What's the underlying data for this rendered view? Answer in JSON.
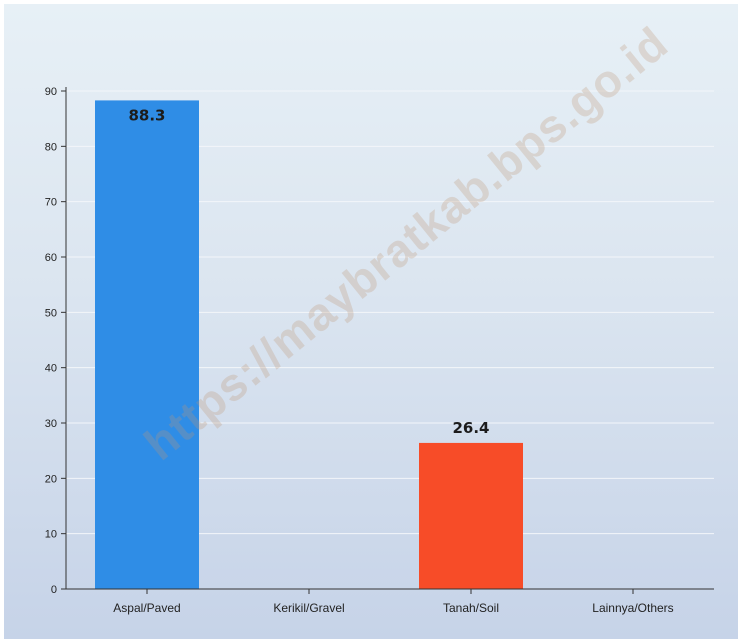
{
  "chart_data": {
    "type": "bar",
    "categories": [
      "Aspal/Paved",
      "Kerikil/Gravel",
      "Tanah/Soil",
      "Lainnya/Others"
    ],
    "values": [
      88.3,
      null,
      26.4,
      null
    ],
    "data_labels": [
      "88.3",
      "",
      "26.4",
      ""
    ],
    "bar_colors": [
      "#2f8de6",
      "#2f8de6",
      "#f74c28",
      "#2f8de6"
    ],
    "yticks": [
      0,
      10,
      20,
      30,
      40,
      50,
      60,
      70,
      80,
      90
    ],
    "ylim": [
      0,
      90
    ],
    "grid": true,
    "title": "",
    "xlabel": "",
    "ylabel": ""
  },
  "watermark": "https://maybratkab.bps.go.id"
}
